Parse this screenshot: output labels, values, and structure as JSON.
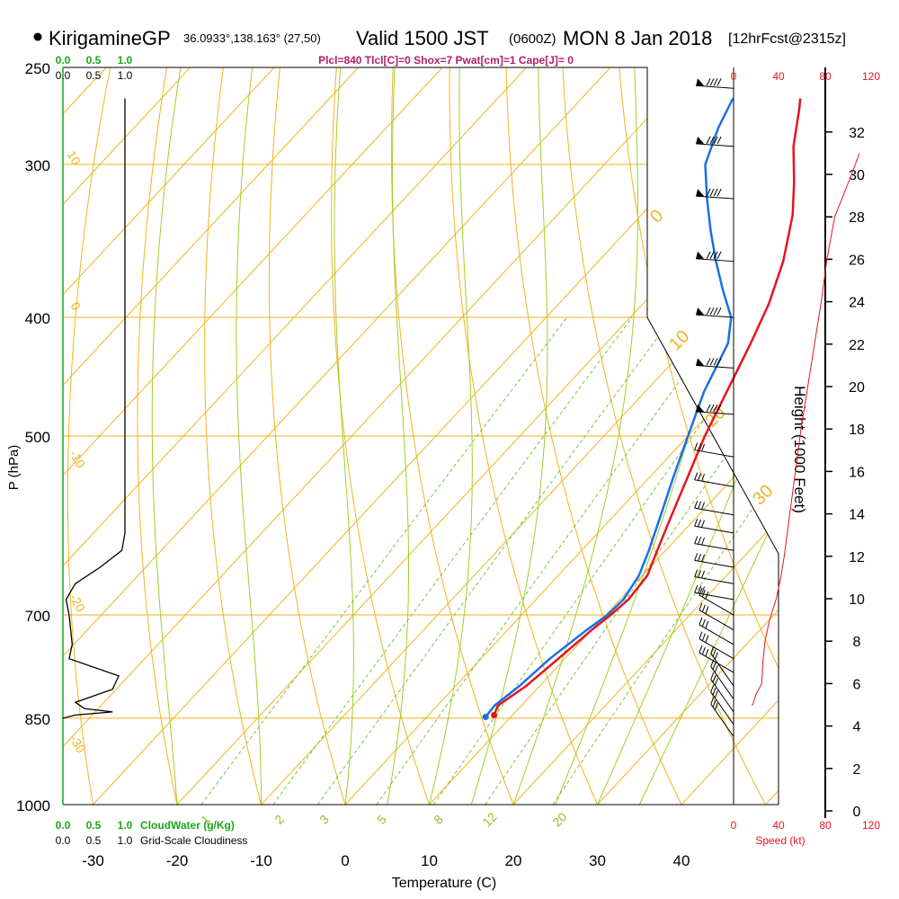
{
  "header": {
    "station": "KirigamineGP",
    "coords": "36.0933°,138.163° (27,50)",
    "valid": "Valid 1500 JST",
    "zulu": "(0600Z)",
    "date": "MON 8 Jan 2018",
    "forecast": "[12hrFcst@2315z]",
    "params": "Plcl=840 Tlcl[C]=0 Shox=7 Pwat[cm]=1 Cape[J]= 0"
  },
  "chart_data": {
    "type": "line",
    "subtype": "skew-t log-p sounding",
    "xlabel": "Temperature (C)",
    "ylabel": "P (hPa)",
    "x_ticks": [
      -30,
      -20,
      -10,
      0,
      10,
      20,
      30,
      40
    ],
    "p_ticks": [
      250,
      300,
      400,
      500,
      700,
      850,
      1000
    ],
    "temperature_series": {
      "color": "#e8141e",
      "points": [
        {
          "p": 845,
          "t": 7.8
        },
        {
          "p": 830,
          "t": 7.2
        },
        {
          "p": 800,
          "t": 8.4
        },
        {
          "p": 760,
          "t": 9.2
        },
        {
          "p": 720,
          "t": 10.0
        },
        {
          "p": 700,
          "t": 10.6
        },
        {
          "p": 680,
          "t": 11.0
        },
        {
          "p": 650,
          "t": 10.6
        },
        {
          "p": 620,
          "t": 9.0
        },
        {
          "p": 580,
          "t": 6.8
        },
        {
          "p": 540,
          "t": 4.5
        },
        {
          "p": 500,
          "t": 2.0
        },
        {
          "p": 460,
          "t": -0.3
        },
        {
          "p": 420,
          "t": -2.8
        },
        {
          "p": 390,
          "t": -5.0
        },
        {
          "p": 360,
          "t": -8.0
        },
        {
          "p": 330,
          "t": -12.0
        },
        {
          "p": 310,
          "t": -15.5
        },
        {
          "p": 290,
          "t": -19.5
        },
        {
          "p": 270,
          "t": -23.0
        },
        {
          "p": 265,
          "t": -24.0
        }
      ]
    },
    "dewpoint_series": {
      "color": "#1a6fe6",
      "points": [
        {
          "p": 848,
          "t": 7.0
        },
        {
          "p": 830,
          "t": 6.8
        },
        {
          "p": 800,
          "t": 7.6
        },
        {
          "p": 760,
          "t": 8.2
        },
        {
          "p": 720,
          "t": 9.4
        },
        {
          "p": 700,
          "t": 10.2
        },
        {
          "p": 680,
          "t": 10.4
        },
        {
          "p": 650,
          "t": 9.6
        },
        {
          "p": 620,
          "t": 8.0
        },
        {
          "p": 580,
          "t": 5.5
        },
        {
          "p": 540,
          "t": 2.8
        },
        {
          "p": 500,
          "t": 0.0
        },
        {
          "p": 460,
          "t": -3.0
        },
        {
          "p": 420,
          "t": -5.5
        },
        {
          "p": 400,
          "t": -8.0
        },
        {
          "p": 380,
          "t": -12.0
        },
        {
          "p": 360,
          "t": -16.0
        },
        {
          "p": 340,
          "t": -20.0
        },
        {
          "p": 320,
          "t": -24.0
        },
        {
          "p": 300,
          "t": -28.0
        },
        {
          "p": 280,
          "t": -30.5
        },
        {
          "p": 265,
          "t": -32.0
        }
      ]
    },
    "dry_adiabat_labels": [
      "10",
      "0",
      "-10",
      "-20",
      "-30",
      "0",
      "10",
      "20",
      "30"
    ],
    "mixing_ratio_labels": [
      "1",
      "2",
      "3",
      "5",
      "8",
      "12",
      "20"
    ],
    "cloud_water_ticks": [
      "0.0",
      "0.5",
      "1.0"
    ],
    "cloud_water_label": "CloudWater (g/Kg)",
    "cloudiness_ticks": [
      "0.0",
      "0.5",
      "1.0"
    ],
    "cloudiness_label": "Grid-Scale Cloudiness",
    "cloudiness_profile": [
      {
        "p": 265,
        "v": 1.0
      },
      {
        "p": 600,
        "v": 1.0
      },
      {
        "p": 620,
        "v": 0.95
      },
      {
        "p": 640,
        "v": 0.6
      },
      {
        "p": 660,
        "v": 0.2
      },
      {
        "p": 680,
        "v": 0.05
      },
      {
        "p": 700,
        "v": 0.1
      },
      {
        "p": 740,
        "v": 0.15
      },
      {
        "p": 760,
        "v": 0.1
      },
      {
        "p": 785,
        "v": 0.9
      },
      {
        "p": 805,
        "v": 0.8
      },
      {
        "p": 825,
        "v": 0.2
      },
      {
        "p": 835,
        "v": 0.35
      },
      {
        "p": 840,
        "v": 0.8
      },
      {
        "p": 845,
        "v": 0.2
      },
      {
        "p": 850,
        "v": 0.0
      }
    ],
    "wind_speed_ticks": [
      "0",
      "40",
      "80",
      "120"
    ],
    "wind_speed_label": "Speed (kt)",
    "wind_speed_profile": [
      {
        "h": 5.0,
        "s": 17
      },
      {
        "h": 5.5,
        "s": 20
      },
      {
        "h": 6.0,
        "s": 25
      },
      {
        "h": 7.0,
        "s": 26
      },
      {
        "h": 8.0,
        "s": 28
      },
      {
        "h": 9.0,
        "s": 32
      },
      {
        "h": 10.0,
        "s": 38
      },
      {
        "h": 11.0,
        "s": 42
      },
      {
        "h": 12.0,
        "s": 45
      },
      {
        "h": 14.0,
        "s": 50
      },
      {
        "h": 16.0,
        "s": 55
      },
      {
        "h": 18.0,
        "s": 60
      },
      {
        "h": 20.0,
        "s": 66
      },
      {
        "h": 22.0,
        "s": 72
      },
      {
        "h": 24.0,
        "s": 78
      },
      {
        "h": 26.0,
        "s": 83
      },
      {
        "h": 28.0,
        "s": 90
      },
      {
        "h": 30.0,
        "s": 105
      },
      {
        "h": 31.0,
        "s": 112
      }
    ],
    "height_axis_label": "Height (1000 Feet)",
    "height_ticks": [
      0,
      2,
      4,
      6,
      8,
      10,
      12,
      14,
      16,
      18,
      20,
      22,
      24,
      26,
      28,
      30,
      32
    ],
    "wind_barb_pressures": [
      260,
      290,
      320,
      360,
      400,
      440,
      480,
      520,
      550,
      580,
      600,
      620,
      640,
      660,
      680,
      700,
      720,
      740,
      760,
      780,
      800,
      820,
      840,
      860,
      880
    ]
  }
}
